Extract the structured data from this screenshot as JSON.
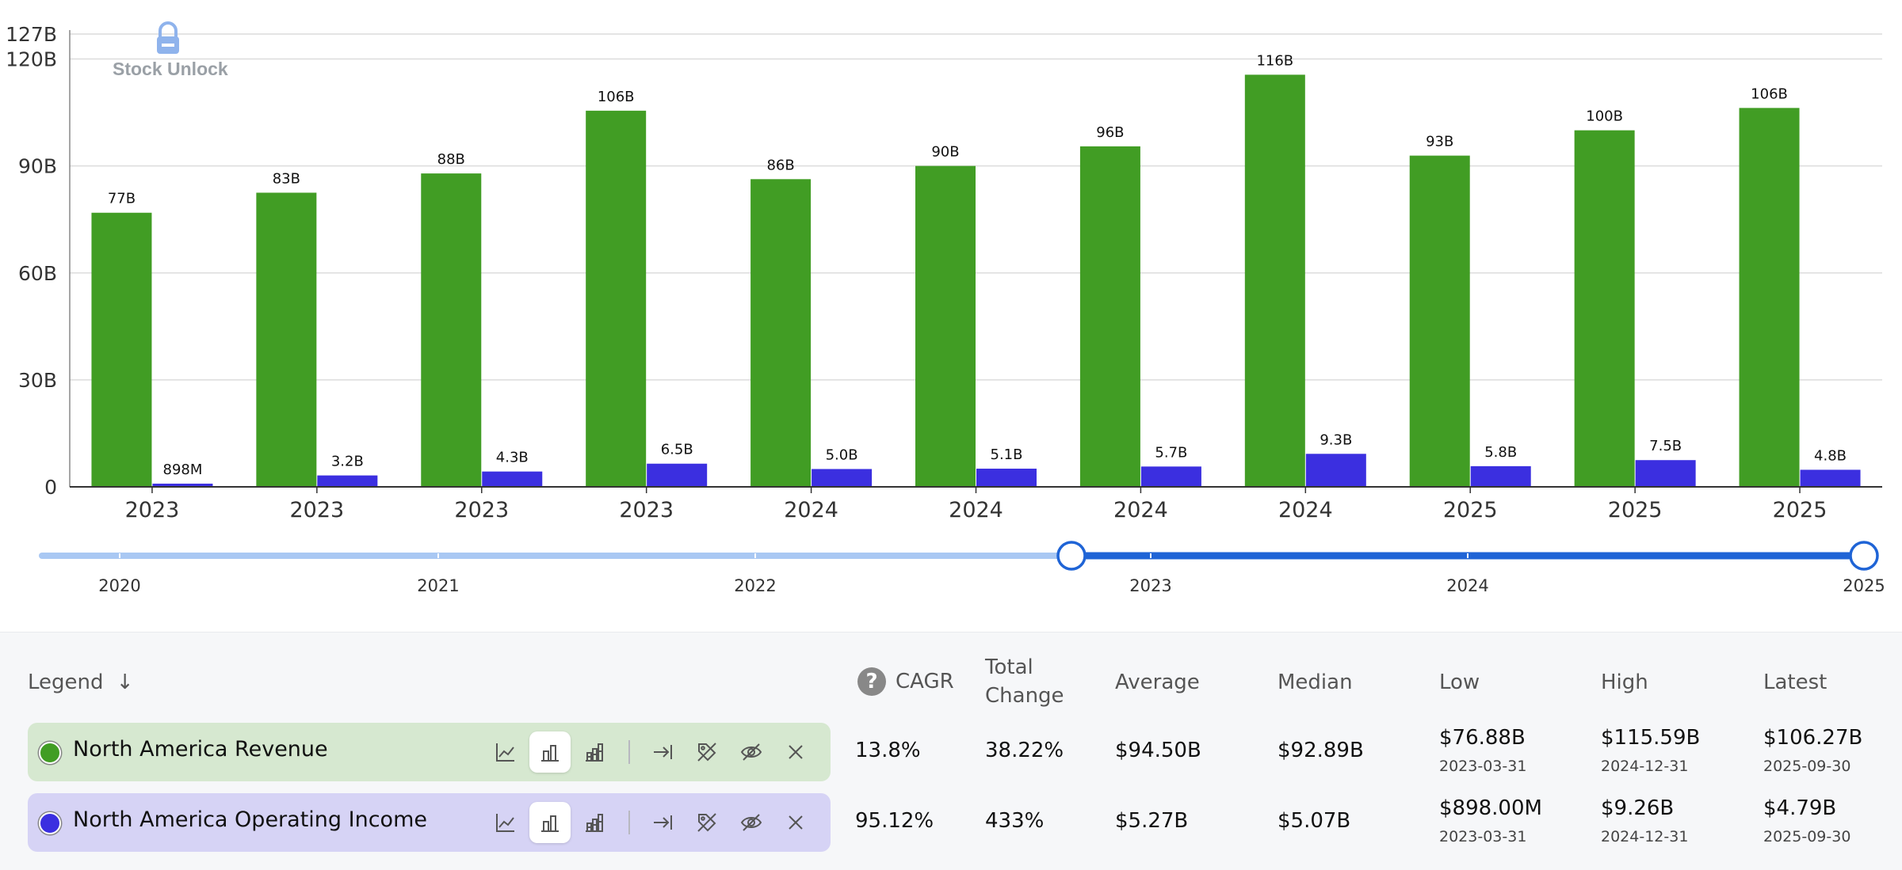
{
  "chart_data": {
    "type": "bar",
    "categories": [
      "2023",
      "2023",
      "2023",
      "2023",
      "2024",
      "2024",
      "2024",
      "2024",
      "2025",
      "2025",
      "2025"
    ],
    "series": [
      {
        "name": "North America Revenue",
        "color": "#419d24",
        "values": [
          76.88,
          82.5,
          87.9,
          105.5,
          86.3,
          90.0,
          95.5,
          115.59,
          92.9,
          100.0,
          106.27
        ],
        "labels": [
          "77B",
          "83B",
          "88B",
          "106B",
          "86B",
          "90B",
          "96B",
          "116B",
          "93B",
          "100B",
          "106B"
        ]
      },
      {
        "name": "North America Operating Income",
        "color": "#3b2fe0",
        "values": [
          0.898,
          3.2,
          4.3,
          6.5,
          5.0,
          5.1,
          5.7,
          9.26,
          5.8,
          7.5,
          4.79
        ],
        "labels": [
          "898M",
          "3.2B",
          "4.3B",
          "6.5B",
          "5.0B",
          "5.1B",
          "5.7B",
          "9.3B",
          "5.8B",
          "7.5B",
          "4.8B"
        ]
      }
    ],
    "y_ticks": [
      {
        "value": 0,
        "label": "0"
      },
      {
        "value": 30,
        "label": "30B"
      },
      {
        "value": 60,
        "label": "60B"
      },
      {
        "value": 90,
        "label": "90B"
      },
      {
        "value": 120,
        "label": "120B"
      },
      {
        "value": 127,
        "label": "127B"
      }
    ],
    "ylim": [
      0,
      127
    ],
    "grid": true,
    "watermark": "Stock Unlock"
  },
  "timeline": {
    "labels": [
      "2020",
      "2021",
      "2022",
      "2023",
      "2024",
      "2025"
    ],
    "range_start": "2023",
    "range_end": "2025"
  },
  "stats_header": {
    "legend": "Legend",
    "legend_arrow": "↓",
    "help": "?",
    "cagr": "CAGR",
    "total_change_1": "Total",
    "total_change_2": "Change",
    "average": "Average",
    "median": "Median",
    "low": "Low",
    "high": "High",
    "latest": "Latest"
  },
  "rows": [
    {
      "name": "North America Revenue",
      "color": "#419d24",
      "cagr": "13.8%",
      "total_change": "38.22%",
      "average": "$94.50B",
      "median": "$92.89B",
      "low": "$76.88B",
      "low_date": "2023-03-31",
      "high": "$115.59B",
      "high_date": "2024-12-31",
      "latest": "$106.27B",
      "latest_date": "2025-09-30"
    },
    {
      "name": "North America Operating Income",
      "color": "#3b2fe0",
      "cagr": "95.12%",
      "total_change": "433%",
      "average": "$5.27B",
      "median": "$5.07B",
      "low": "$898.00M",
      "low_date": "2023-03-31",
      "high": "$9.26B",
      "high_date": "2024-12-31",
      "latest": "$4.79B",
      "latest_date": "2025-09-30"
    }
  ]
}
